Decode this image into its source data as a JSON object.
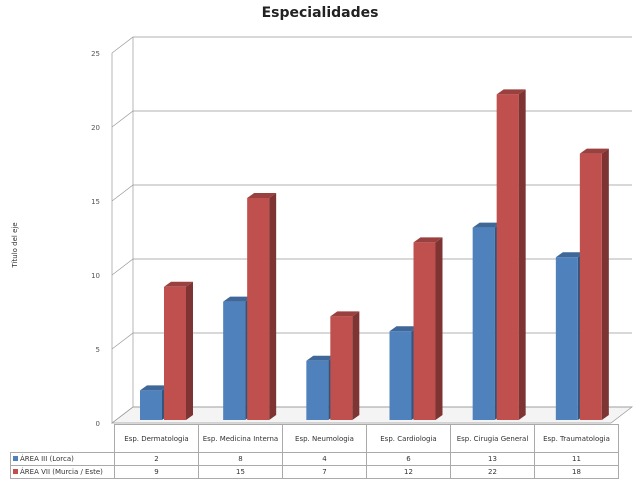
{
  "chart_data": {
    "type": "bar",
    "title": "Especialidades",
    "xlabel": "",
    "ylabel": "Título del eje",
    "ylim": [
      0,
      25
    ],
    "yticks": [
      "0",
      "5",
      "10",
      "15",
      "20",
      "25"
    ],
    "grid": true,
    "legend": "data-table-bottom",
    "categories": [
      "Esp. Dermatologia",
      "Esp. Medicina Interna",
      "Esp. Neumologia",
      "Esp. Cardiologia",
      "Esp. Cirugia General",
      "Esp. Traumatologia"
    ],
    "series": [
      {
        "name": "ÁREA III (Lorca)",
        "color": "#4f81bd",
        "values": [
          2,
          8,
          4,
          6,
          13,
          11
        ]
      },
      {
        "name": "ÁREA VII (Murcia / Este)",
        "color": "#c0504d",
        "values": [
          9,
          15,
          7,
          12,
          22,
          18
        ]
      }
    ]
  }
}
